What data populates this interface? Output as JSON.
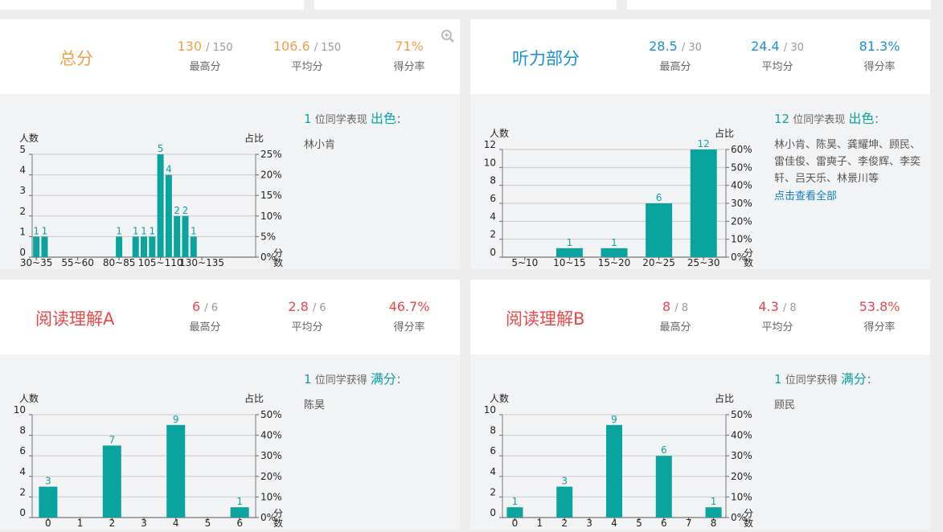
{
  "top_stubs": [
    "",
    "",
    ""
  ],
  "panels": [
    {
      "title": "总分",
      "title_color": "#f0a04b",
      "value_color": "#f0a04b",
      "stats": [
        {
          "value": "130",
          "max": "/ 150",
          "label": "最高分"
        },
        {
          "value": "106.6",
          "max": "/ 150",
          "label": "平均分"
        },
        {
          "value": "71%",
          "max": "",
          "label": "得分率"
        }
      ],
      "summary_count": "1",
      "summary_mid": "位同学表现",
      "summary_word": "出色",
      "summary_colon": "：",
      "names": "林小肯",
      "link": "",
      "has_zoom": true
    },
    {
      "title": "听力部分",
      "title_color": "#1a8fd4",
      "value_color": "#1a8fd4",
      "stats": [
        {
          "value": "28.5",
          "max": "/ 30",
          "label": "最高分"
        },
        {
          "value": "24.4",
          "max": "/ 30",
          "label": "平均分"
        },
        {
          "value": "81.3%",
          "max": "",
          "label": "得分率"
        }
      ],
      "summary_count": "12",
      "summary_mid": "位同学表现",
      "summary_word": "出色",
      "summary_colon": "：",
      "names": "林小肯、陈昊、龚耀坤、顾民、雷佳俊、雷奭子、李俊辉、李奕轩、吕天乐、林景川等",
      "link": "点击查看全部",
      "has_zoom": false
    },
    {
      "title": "阅读理解A",
      "title_color": "#e8474b",
      "value_color": "#e8474b",
      "stats": [
        {
          "value": "6",
          "max": "/ 6",
          "label": "最高分"
        },
        {
          "value": "2.8",
          "max": "/ 6",
          "label": "平均分"
        },
        {
          "value": "46.7%",
          "max": "",
          "label": "得分率"
        }
      ],
      "summary_count": "1",
      "summary_mid": "位同学获得",
      "summary_word": "满分",
      "summary_colon": "：",
      "names": "陈昊",
      "link": "",
      "has_zoom": false
    },
    {
      "title": "阅读理解B",
      "title_color": "#e8474b",
      "value_color": "#e8474b",
      "stats": [
        {
          "value": "8",
          "max": "/ 8",
          "label": "最高分"
        },
        {
          "value": "4.3",
          "max": "/ 8",
          "label": "平均分"
        },
        {
          "value": "53.8%",
          "max": "",
          "label": "得分率"
        }
      ],
      "summary_count": "1",
      "summary_mid": "位同学获得",
      "summary_word": "满分",
      "summary_colon": "：",
      "names": "顾民",
      "link": "",
      "has_zoom": false
    }
  ],
  "chart_data": [
    {
      "type": "bar",
      "ylabel": "人数",
      "y2label": "占比",
      "xunit": "分数",
      "ylim": [
        0,
        5
      ],
      "yticks": [
        0,
        1,
        2,
        3,
        4,
        5
      ],
      "y2ticks": [
        "0%",
        "5%",
        "10%",
        "15%",
        "20%",
        "25%"
      ],
      "x_tick_labels": [
        "30~35",
        "55~60",
        "80~85",
        "105~110",
        "130~135"
      ],
      "bar_color": "#0aa39e",
      "bars": [
        {
          "bin": "30~35",
          "value": 1
        },
        {
          "bin": "35~40",
          "value": 1
        },
        {
          "bin": "80~85",
          "value": 1
        },
        {
          "bin": "90~95",
          "value": 1
        },
        {
          "bin": "95~100",
          "value": 1
        },
        {
          "bin": "100~105",
          "value": 1
        },
        {
          "bin": "105~110",
          "value": 5
        },
        {
          "bin": "110~115",
          "value": 4
        },
        {
          "bin": "115~120",
          "value": 2
        },
        {
          "bin": "120~125",
          "value": 2
        },
        {
          "bin": "125~130",
          "value": 1
        }
      ]
    },
    {
      "type": "bar",
      "ylabel": "人数",
      "y2label": "占比",
      "xunit": "分数",
      "ylim": [
        0,
        12
      ],
      "yticks": [
        0,
        2,
        4,
        6,
        8,
        10,
        12
      ],
      "y2ticks": [
        "0%",
        "10%",
        "20%",
        "30%",
        "40%",
        "50%",
        "60%"
      ],
      "x_tick_labels": [
        "5~10",
        "10~15",
        "15~20",
        "20~25",
        "25~30"
      ],
      "bar_color": "#0aa39e",
      "bars": [
        {
          "bin": "5~10",
          "value": 0
        },
        {
          "bin": "10~15",
          "value": 1
        },
        {
          "bin": "15~20",
          "value": 1
        },
        {
          "bin": "20~25",
          "value": 6
        },
        {
          "bin": "25~30",
          "value": 12
        }
      ]
    },
    {
      "type": "bar",
      "ylabel": "人数",
      "y2label": "占比",
      "xunit": "分数",
      "ylim": [
        0,
        10
      ],
      "yticks": [
        0,
        2,
        4,
        6,
        8,
        10
      ],
      "y2ticks": [
        "0%",
        "10%",
        "20%",
        "30%",
        "40%",
        "50%"
      ],
      "x_tick_labels": [
        "0",
        "1",
        "2",
        "3",
        "4",
        "5",
        "6"
      ],
      "bar_color": "#0aa39e",
      "bars": [
        {
          "bin": "0",
          "value": 3
        },
        {
          "bin": "1",
          "value": 0
        },
        {
          "bin": "2",
          "value": 7
        },
        {
          "bin": "3",
          "value": 0
        },
        {
          "bin": "4",
          "value": 9
        },
        {
          "bin": "5",
          "value": 0
        },
        {
          "bin": "6",
          "value": 1
        }
      ]
    },
    {
      "type": "bar",
      "ylabel": "人数",
      "y2label": "占比",
      "xunit": "分数",
      "ylim": [
        0,
        10
      ],
      "yticks": [
        0,
        2,
        4,
        6,
        8,
        10
      ],
      "y2ticks": [
        "0%",
        "10%",
        "20%",
        "30%",
        "40%",
        "50%"
      ],
      "x_tick_labels": [
        "0",
        "1",
        "2",
        "3",
        "4",
        "5",
        "6",
        "7",
        "8"
      ],
      "bar_color": "#0aa39e",
      "bars": [
        {
          "bin": "0",
          "value": 1
        },
        {
          "bin": "1",
          "value": 0
        },
        {
          "bin": "2",
          "value": 3
        },
        {
          "bin": "3",
          "value": 0
        },
        {
          "bin": "4",
          "value": 9
        },
        {
          "bin": "5",
          "value": 0
        },
        {
          "bin": "6",
          "value": 6
        },
        {
          "bin": "7",
          "value": 0
        },
        {
          "bin": "8",
          "value": 1
        }
      ]
    }
  ]
}
